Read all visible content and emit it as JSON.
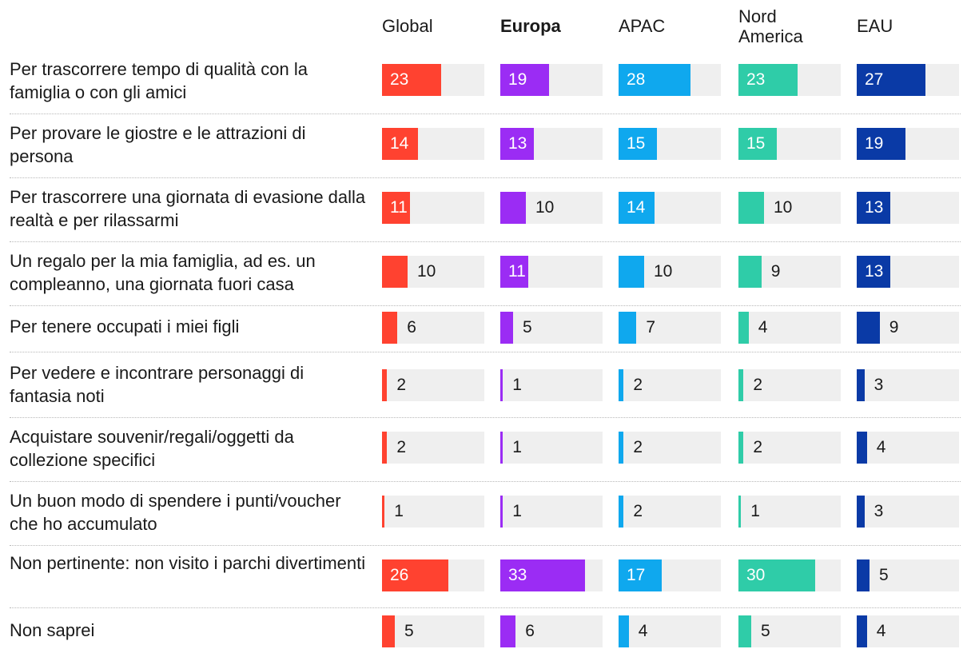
{
  "chart_data": {
    "type": "bar",
    "orientation": "horizontal",
    "xlim": [
      0,
      40
    ],
    "columns": [
      {
        "name": "Global",
        "color": "#ff4230",
        "bold": false
      },
      {
        "name": "Europa",
        "color": "#9b2cf4",
        "bold": true
      },
      {
        "name": "APAC",
        "color": "#0fa8ee",
        "bold": false
      },
      {
        "name": "Nord America",
        "color": "#2fcca8",
        "bold": false
      },
      {
        "name": "EAU",
        "color": "#0a3aa6",
        "bold": false
      }
    ],
    "categories": [
      "Per trascorrere tempo di qualità con la famiglia o con gli amici",
      "Per provare le giostre e le attrazioni di persona",
      "Per trascorrere una giornata di evasione dalla realtà e per rilassarmi",
      "Un regalo per la mia famiglia, ad es. un compleanno, una giornata fuori casa",
      "Per tenere occupati i miei figli",
      "Per vedere e incontrare personaggi di fantasia noti",
      "Acquistare souvenir/regali/oggetti da collezione specifici",
      "Un buon modo di spendere i punti/voucher che ho accumulato",
      "Non pertinente: non visito i parchi divertimenti",
      "Non saprei"
    ],
    "series": [
      {
        "name": "Global",
        "values": [
          23,
          14,
          11,
          10,
          6,
          2,
          2,
          1,
          26,
          5
        ]
      },
      {
        "name": "Europa",
        "values": [
          19,
          13,
          10,
          11,
          5,
          1,
          1,
          1,
          33,
          6
        ]
      },
      {
        "name": "APAC",
        "values": [
          28,
          15,
          14,
          10,
          7,
          2,
          2,
          2,
          17,
          4
        ]
      },
      {
        "name": "Nord America",
        "values": [
          23,
          15,
          10,
          9,
          4,
          2,
          2,
          1,
          30,
          5
        ]
      },
      {
        "name": "EAU",
        "values": [
          27,
          19,
          13,
          13,
          9,
          3,
          4,
          3,
          5,
          4
        ]
      }
    ]
  }
}
